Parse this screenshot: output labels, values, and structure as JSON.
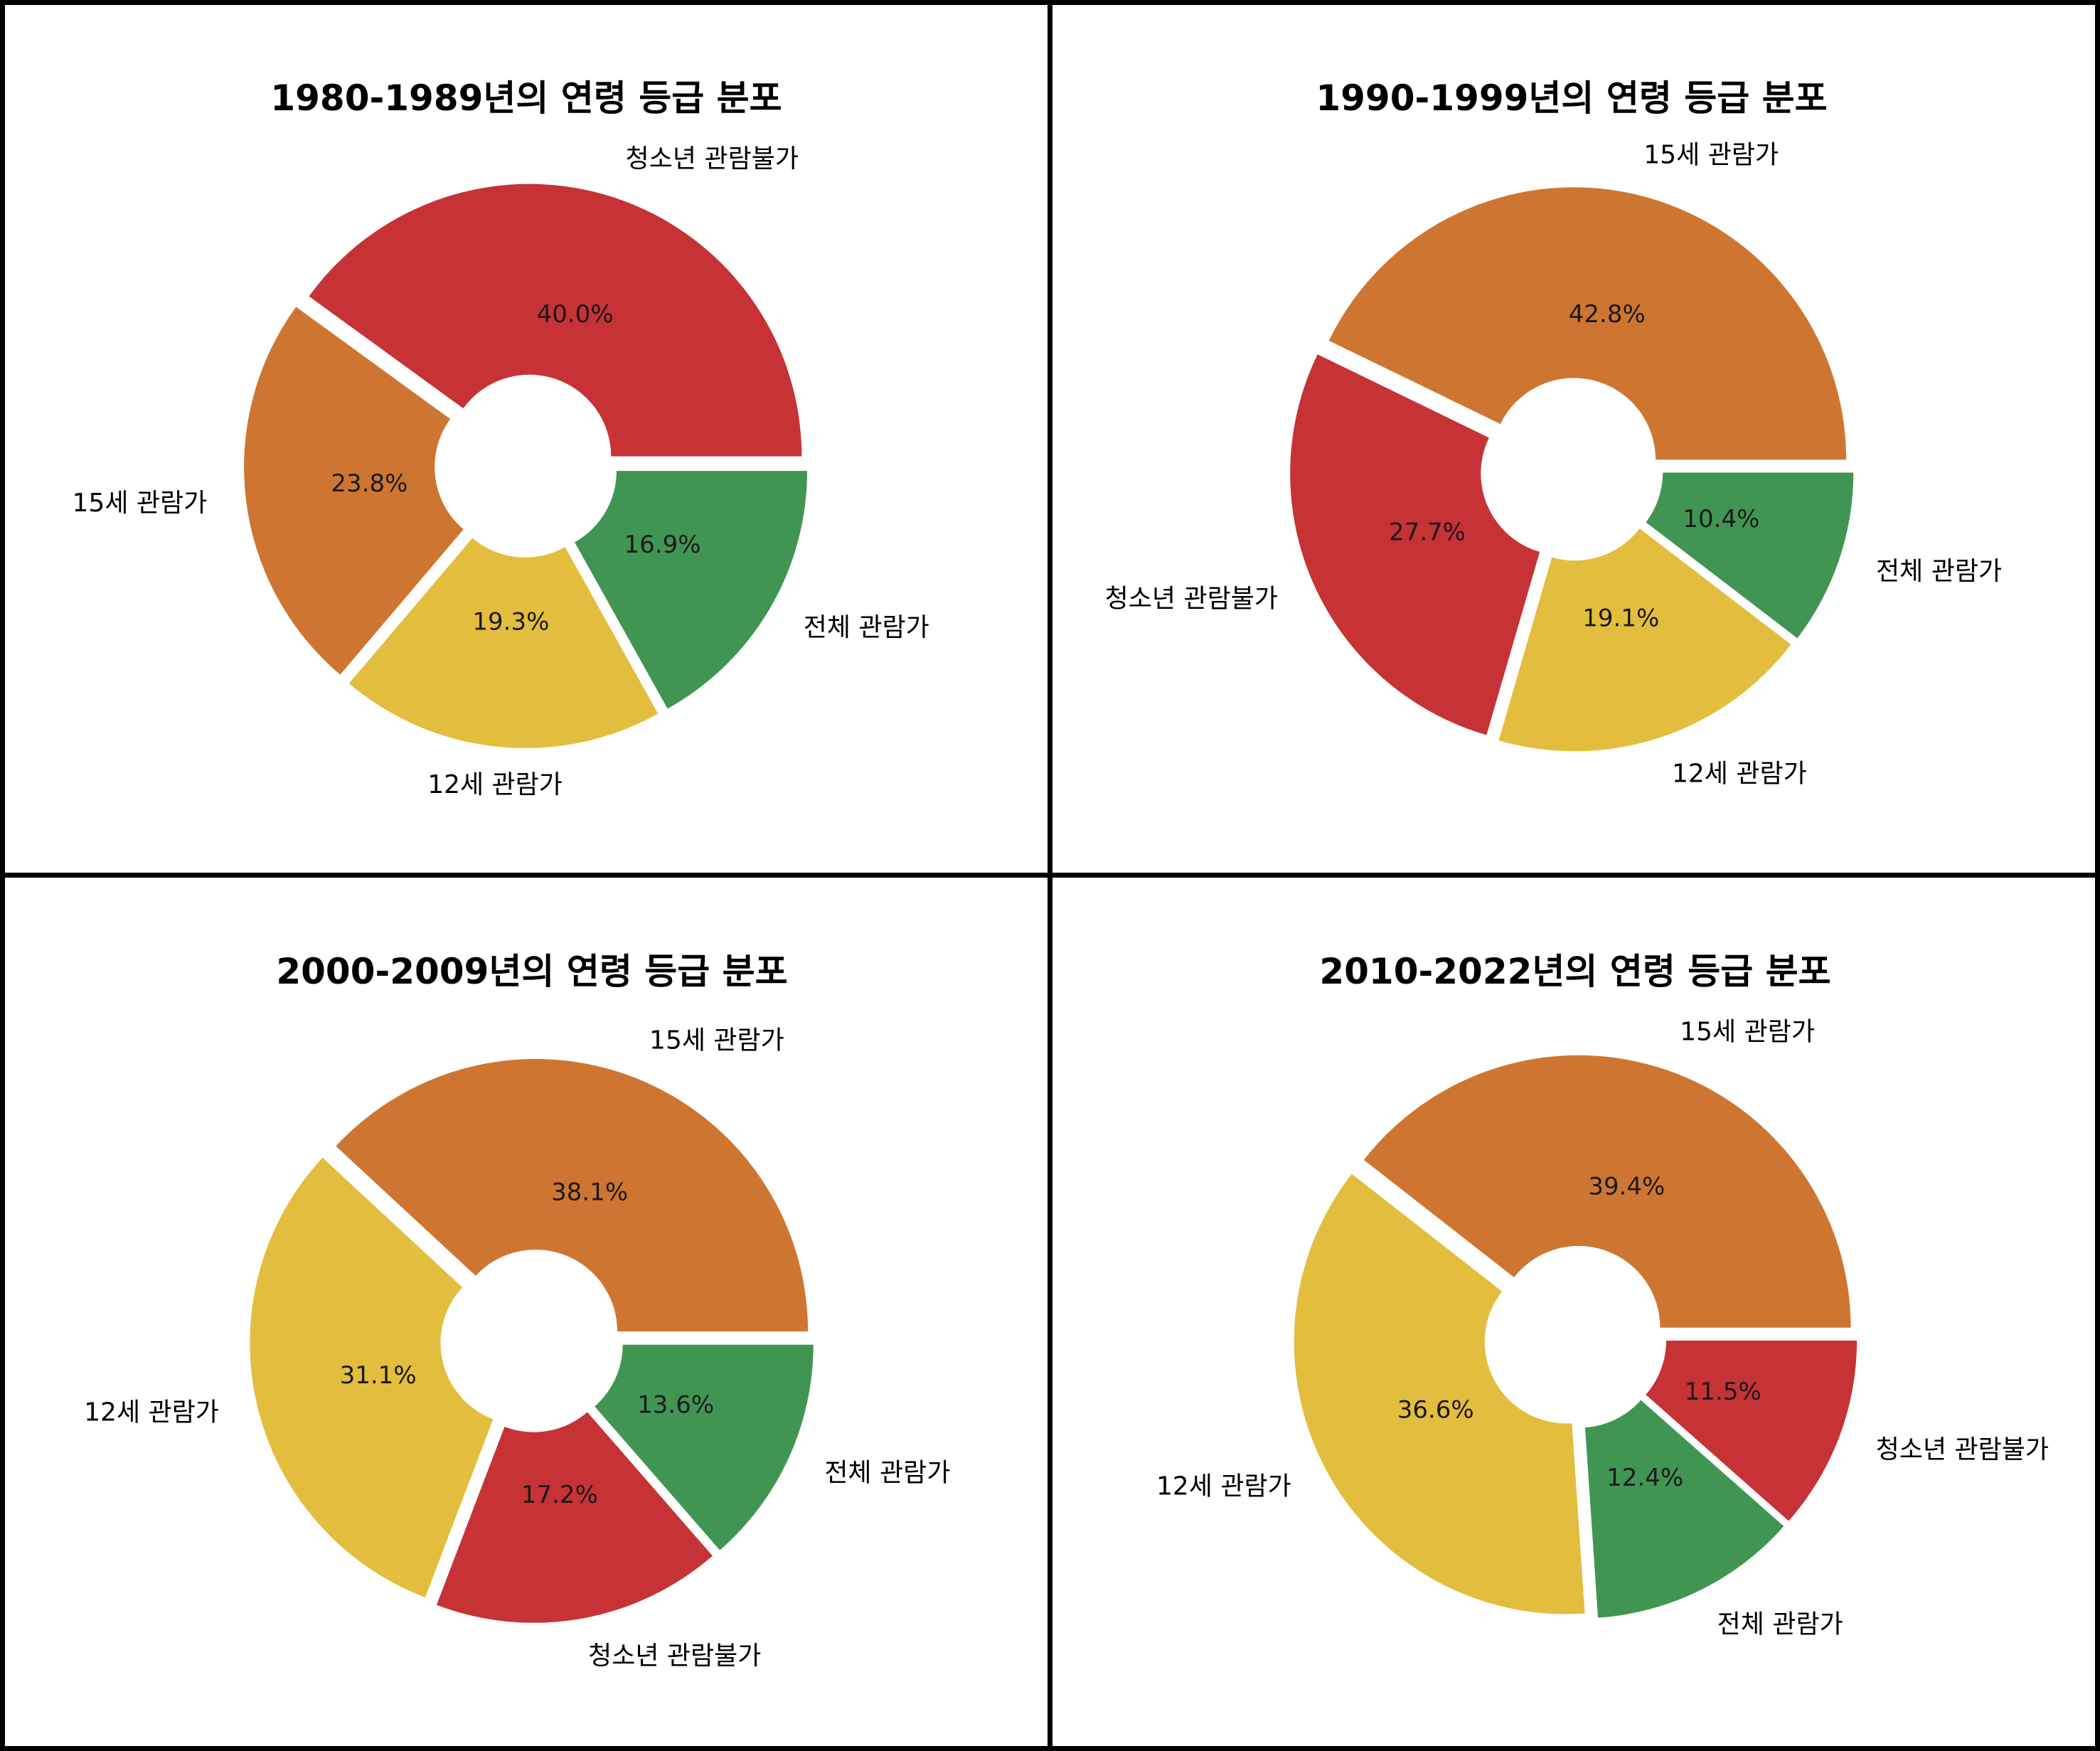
{
  "colors": {
    "청소년 관람불가": "#c63235",
    "15세 관람가": "#ce7631",
    "12세 관람가": "#e3bd3e",
    "전체 관람가": "#419552"
  },
  "chart_data": [
    {
      "type": "pie",
      "title": "1980-1989년의 연령 등급 분포",
      "labels": [
        "청소년 관람불가",
        "15세 관람가",
        "12세 관람가",
        "전체 관람가"
      ],
      "values": [
        40.0,
        23.8,
        19.3,
        16.9
      ],
      "percent_labels": [
        "40.0%",
        "23.8%",
        "19.3%",
        "16.9%"
      ]
    },
    {
      "type": "pie",
      "title": "1990-1999년의 연령 등급 분포",
      "labels": [
        "15세 관람가",
        "청소년 관람불가",
        "12세 관람가",
        "전체 관람가"
      ],
      "values": [
        42.8,
        27.7,
        19.1,
        10.4
      ],
      "percent_labels": [
        "42.8%",
        "27.7%",
        "19.1%",
        "10.4%"
      ]
    },
    {
      "type": "pie",
      "title": "2000-2009년의 연령 등급 분포",
      "labels": [
        "15세 관람가",
        "12세 관람가",
        "청소년 관람불가",
        "전체 관람가"
      ],
      "values": [
        38.1,
        31.1,
        17.2,
        13.6
      ],
      "percent_labels": [
        "38.1%",
        "31.1%",
        "17.2%",
        "13.6%"
      ]
    },
    {
      "type": "pie",
      "title": "2010-2022년의 연령 등급 분포",
      "labels": [
        "15세 관람가",
        "12세 관람가",
        "전체 관람가",
        "청소년 관람불가"
      ],
      "values": [
        39.4,
        36.6,
        12.4,
        11.5
      ],
      "percent_labels": [
        "39.4%",
        "36.6%",
        "12.4%",
        "11.5%"
      ]
    }
  ]
}
